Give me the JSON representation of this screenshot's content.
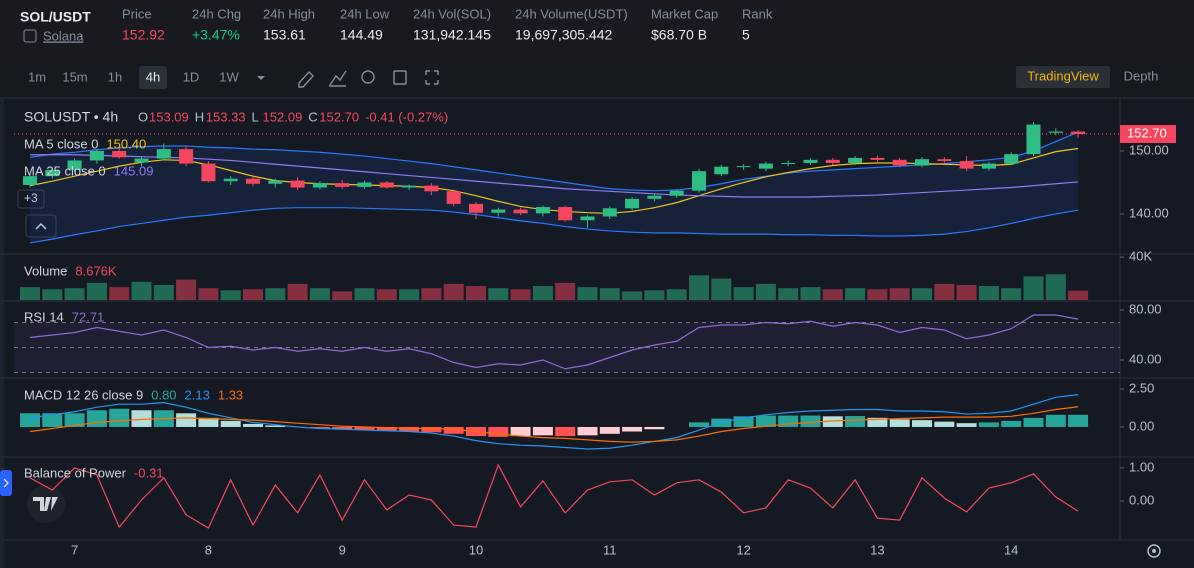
{
  "header": {
    "pair": "SOL/USDT",
    "name": "Solana",
    "stats": [
      {
        "label": "Price",
        "value": "152.92",
        "color": "#f6465d"
      },
      {
        "label": "24h Chg",
        "value": "+3.47%",
        "color": "#0ecb81"
      },
      {
        "label": "24h High",
        "value": "153.61",
        "color": "#eaecef"
      },
      {
        "label": "24h Low",
        "value": "144.49",
        "color": "#eaecef"
      },
      {
        "label": "24h Vol(SOL)",
        "value": "131,942.145",
        "color": "#eaecef"
      },
      {
        "label": "24h Volume(USDT)",
        "value": "19,697,305.442",
        "color": "#eaecef"
      },
      {
        "label": "Market Cap",
        "value": "$68.70 B",
        "color": "#eaecef"
      },
      {
        "label": "Rank",
        "value": "5",
        "color": "#eaecef"
      }
    ]
  },
  "toolbar": {
    "intervals": [
      "1m",
      "15m",
      "1h",
      "4h",
      "1D",
      "1W"
    ],
    "active_interval": 3,
    "views": [
      "TradingView",
      "Depth"
    ],
    "active_view": 0
  },
  "chart_data": {
    "type": "candlestick",
    "symbol": "SOLUSDT • 4h",
    "legend": {
      "O": "153.09",
      "H": "153.33",
      "L": "152.09",
      "C": "152.70",
      "change": "-0.41 (-0.27%)"
    },
    "categories": [
      null,
      null,
      "7",
      null,
      null,
      null,
      null,
      null,
      "8",
      null,
      null,
      null,
      null,
      null,
      "9",
      null,
      null,
      null,
      null,
      null,
      "10",
      null,
      null,
      null,
      null,
      null,
      "11",
      null,
      null,
      null,
      null,
      null,
      "12",
      null,
      null,
      null,
      null,
      null,
      "13",
      null,
      null,
      null,
      null,
      null,
      "14",
      null,
      null,
      null
    ],
    "candles": [
      [
        144.6,
        146.3,
        144.2,
        146
      ],
      [
        146,
        147.2,
        145.6,
        147
      ],
      [
        147,
        148.8,
        146.6,
        148.5
      ],
      [
        148.5,
        150.3,
        148,
        150
      ],
      [
        150,
        150.6,
        148.8,
        149
      ],
      [
        148.2,
        149.2,
        147.6,
        148.8
      ],
      [
        148.8,
        151.2,
        148.5,
        150.3
      ],
      [
        150.3,
        150.8,
        147.6,
        148
      ],
      [
        148,
        148.4,
        145,
        145.2
      ],
      [
        145.2,
        146,
        144.6,
        145.6
      ],
      [
        145.6,
        146.2,
        144.4,
        144.8
      ],
      [
        144.8,
        145.6,
        144.2,
        145.3
      ],
      [
        145.3,
        145.8,
        143.8,
        144.2
      ],
      [
        144.2,
        145.2,
        143.9,
        144.9
      ],
      [
        144.9,
        145.4,
        144,
        144.3
      ],
      [
        144.3,
        145.3,
        144,
        145
      ],
      [
        145,
        145.2,
        144,
        144.2
      ],
      [
        144.2,
        144.7,
        143.8,
        144.5
      ],
      [
        144.5,
        144.9,
        143,
        143.6
      ],
      [
        143.6,
        143.9,
        141.2,
        141.6
      ],
      [
        141.6,
        141.9,
        139.2,
        140.2
      ],
      [
        140.2,
        141,
        139.6,
        140.7
      ],
      [
        140.7,
        141,
        139.8,
        140.1
      ],
      [
        140.1,
        141.3,
        139.6,
        141.1
      ],
      [
        141.1,
        141.3,
        138.8,
        139
      ],
      [
        139,
        139.8,
        137.8,
        139.6
      ],
      [
        139.6,
        141.2,
        139.2,
        140.9
      ],
      [
        140.9,
        142.6,
        140.6,
        142.4
      ],
      [
        142.4,
        143.2,
        142,
        142.9
      ],
      [
        142.9,
        143.9,
        142.6,
        143.7
      ],
      [
        143.7,
        147.2,
        143.4,
        146.8
      ],
      [
        146.3,
        147.8,
        146,
        147.5
      ],
      [
        147.5,
        147.9,
        147,
        147.6
      ],
      [
        147.2,
        148.3,
        146.8,
        148
      ],
      [
        148,
        148.5,
        147.6,
        148.1
      ],
      [
        148.1,
        148.9,
        147.8,
        148.6
      ],
      [
        148.6,
        148.9,
        147.8,
        148.1
      ],
      [
        148.1,
        149.2,
        147.8,
        148.9
      ],
      [
        148.9,
        149.3,
        148.2,
        148.6
      ],
      [
        148.6,
        148.9,
        147.4,
        147.7
      ],
      [
        147.7,
        149,
        147.4,
        148.7
      ],
      [
        148.7,
        149,
        147.9,
        148.4
      ],
      [
        148.4,
        149.2,
        146.8,
        147.2
      ],
      [
        147.2,
        148.3,
        146.9,
        148
      ],
      [
        148,
        149.8,
        147.8,
        149.5
      ],
      [
        149.5,
        154.6,
        149.2,
        154.2
      ],
      [
        152.9,
        153.6,
        152.5,
        153.1
      ],
      [
        153.09,
        153.33,
        152.09,
        152.7
      ]
    ],
    "up_color": "#2ebd85",
    "down_color": "#f6465d",
    "ylim": [
      133.8,
      158.1
    ],
    "yticks": [
      {
        "value": 140,
        "label": "140.00"
      },
      {
        "value": 150,
        "label": "150.00"
      }
    ],
    "last_price_label": "152.70",
    "overlays": [
      {
        "name": "MA 5 close 0",
        "value_label": "150.40",
        "color": "#f0c419",
        "values": [
          144.5,
          145.2,
          146,
          146.8,
          147.6,
          148.2,
          148.6,
          148.5,
          147.8,
          146.9,
          146,
          145.3,
          145,
          144.8,
          144.7,
          144.6,
          144.5,
          144.4,
          144.2,
          143.7,
          142.9,
          142,
          141.2,
          140.7,
          140.4,
          140.2,
          140.1,
          140.4,
          141,
          141.8,
          142.9,
          144,
          145,
          145.9,
          146.6,
          147.2,
          147.7,
          148,
          148.1,
          148.1,
          148,
          147.9,
          147.8,
          147.7,
          147.9,
          148.9,
          149.9,
          150.4
        ]
      },
      {
        "name": "MA 25 close 0",
        "value_label": "145.09",
        "color": "#8e7cf0",
        "values": [
          149.4,
          149.4,
          149.4,
          149.3,
          149.2,
          149.1,
          149,
          148.9,
          148.7,
          148.5,
          148.2,
          147.9,
          147.6,
          147.3,
          147,
          146.7,
          146.4,
          146.1,
          145.8,
          145.5,
          145.2,
          144.9,
          144.6,
          144.3,
          144,
          143.8,
          143.6,
          143.4,
          143.2,
          143,
          142.9,
          142.8,
          142.7,
          142.7,
          142.7,
          142.7,
          142.8,
          142.9,
          143,
          143.2,
          143.4,
          143.6,
          143.8,
          144,
          144.2,
          144.5,
          144.8,
          145.09
        ]
      }
    ],
    "bands": {
      "color": "#2979ff",
      "upper": [
        149,
        149.5,
        149.8,
        150.2,
        150.5,
        150.7,
        150.8,
        150.8,
        150.6,
        150.5,
        150.3,
        150.2,
        150,
        149.8,
        149.5,
        149.2,
        148.8,
        148.4,
        148,
        147.5,
        147,
        146.5,
        146,
        145.5,
        145,
        144.5,
        144,
        143.8,
        143.7,
        143.8,
        144.2,
        144.8,
        145.5,
        146,
        146.5,
        146.8,
        147,
        147.2,
        147.4,
        147.6,
        147.8,
        148,
        148.3,
        148.6,
        149,
        150,
        151.5,
        153
      ],
      "lower": [
        135.4,
        136,
        136.7,
        137.3,
        138,
        138.5,
        139,
        139.5,
        139.8,
        140.2,
        140.6,
        140.9,
        141,
        141,
        141,
        140.9,
        140.8,
        140.7,
        140.6,
        140.3,
        139.9,
        139.4,
        138.9,
        138.5,
        138,
        137.6,
        137.3,
        137.1,
        137,
        137,
        136.9,
        136.8,
        136.8,
        136.8,
        136.7,
        136.7,
        136.6,
        136.6,
        136.5,
        136.5,
        136.6,
        136.8,
        137.2,
        137.8,
        138.5,
        139.3,
        140,
        140.6
      ]
    },
    "hidden_indicators": "+3",
    "panels": [
      {
        "type": "volume",
        "title": "Volume",
        "value_label": "8.676K",
        "ylim": [
          0,
          41000
        ],
        "yticks": [
          {
            "value": 40000,
            "label": "40K"
          }
        ],
        "values": [
          12000,
          10000,
          11000,
          16000,
          12000,
          17000,
          14000,
          19000,
          11000,
          9000,
          10000,
          11000,
          15000,
          11000,
          8000,
          11000,
          10000,
          10000,
          11000,
          15000,
          13000,
          11000,
          10000,
          13000,
          16000,
          12000,
          11000,
          8000,
          9000,
          10000,
          23000,
          20000,
          12000,
          15000,
          11000,
          12000,
          10000,
          11000,
          10000,
          11000,
          11000,
          15000,
          14000,
          13000,
          11000,
          22000,
          24000,
          8676
        ]
      },
      {
        "type": "rsi",
        "title": "RSI 14",
        "value_label": "72.71",
        "color": "#8e6bd8",
        "ylim": [
          27.2,
          86.4
        ],
        "yticks": [
          {
            "value": 40,
            "label": "40.00"
          },
          {
            "value": 80,
            "label": "80.00"
          }
        ],
        "guides": [
          70,
          50,
          30
        ],
        "values": [
          58,
          60,
          62,
          66,
          63,
          60,
          64,
          58,
          50,
          51,
          48,
          50,
          47,
          49,
          47,
          50,
          47,
          49,
          45,
          38,
          34,
          37,
          36,
          40,
          33,
          36,
          42,
          48,
          52,
          55,
          66,
          68,
          68,
          70,
          69,
          71,
          67,
          70,
          68,
          62,
          66,
          64,
          57,
          60,
          65,
          76,
          76,
          72.71
        ]
      },
      {
        "type": "macd",
        "title": "MACD 12 26 close 9",
        "ylim": [
          -1.91,
          3.09
        ],
        "yticks": [
          {
            "value": 0,
            "label": "0.00"
          },
          {
            "value": 2.5,
            "label": "2.50"
          }
        ],
        "hist": {
          "value_label": "0.80",
          "color": "#26a69a",
          "values": [
            0.9,
            0.9,
            0.9,
            1.1,
            1.2,
            1.1,
            1.1,
            0.9,
            0.6,
            0.4,
            0.2,
            0.1,
            0,
            -0.1,
            -0.15,
            -0.2,
            -0.25,
            -0.3,
            -0.35,
            -0.45,
            -0.6,
            -0.65,
            -0.6,
            -0.55,
            -0.6,
            -0.55,
            -0.45,
            -0.3,
            -0.15,
            0,
            0.3,
            0.55,
            0.7,
            0.75,
            0.75,
            0.75,
            0.7,
            0.72,
            0.6,
            0.5,
            0.45,
            0.35,
            0.25,
            0.3,
            0.4,
            0.6,
            0.8,
            0.8
          ]
        },
        "series": [
          {
            "value_label": "2.13",
            "color": "#2196f3",
            "values": [
              0.6,
              0.8,
              1,
              1.3,
              1.5,
              1.5,
              1.6,
              1.3,
              0.9,
              0.6,
              0.3,
              0.15,
              0,
              -0.1,
              -0.15,
              -0.2,
              -0.25,
              -0.3,
              -0.4,
              -0.6,
              -0.9,
              -1.1,
              -1.2,
              -1.25,
              -1.35,
              -1.45,
              -1.4,
              -1.2,
              -0.95,
              -0.7,
              -0.2,
              0.3,
              0.6,
              0.8,
              0.95,
              1.05,
              1.1,
              1.15,
              1.15,
              1.05,
              1.05,
              1,
              0.85,
              0.9,
              1.05,
              1.5,
              1.95,
              2.13
            ]
          },
          {
            "value_label": "1.33",
            "color": "#ff6d00",
            "values": [
              -0.3,
              -0.1,
              0.1,
              0.3,
              0.4,
              0.5,
              0.55,
              0.6,
              0.55,
              0.5,
              0.45,
              0.35,
              0.25,
              0.15,
              0.05,
              0,
              -0.05,
              -0.1,
              -0.1,
              -0.15,
              -0.3,
              -0.45,
              -0.6,
              -0.7,
              -0.75,
              -0.85,
              -0.95,
              -1,
              -0.95,
              -0.85,
              -0.6,
              -0.3,
              -0.1,
              0.05,
              0.2,
              0.3,
              0.4,
              0.45,
              0.5,
              0.55,
              0.6,
              0.65,
              0.65,
              0.65,
              0.7,
              0.9,
              1.15,
              1.33
            ]
          }
        ]
      },
      {
        "type": "line",
        "title": "Balance of Power",
        "value_label": "-0.31",
        "color": "#f6465d",
        "ylim": [
          -1.09,
          1.3
        ],
        "yticks": [
          {
            "value": 0,
            "label": "0.00"
          },
          {
            "value": 1,
            "label": "1.00"
          }
        ],
        "values": [
          0.7,
          0.33,
          1,
          0.79,
          -0.79,
          0.03,
          0.7,
          -0.42,
          -0.82,
          0.64,
          -0.73,
          0.48,
          -0.36,
          0.79,
          -0.58,
          0.64,
          -0.27,
          0.18,
          0.03,
          -0.73,
          -0.79,
          1.09,
          -0.18,
          0.61,
          -0.36,
          0.33,
          0.58,
          0.64,
          0.18,
          0.55,
          0.64,
          0.27,
          -0.36,
          -0.21,
          0.64,
          0.39,
          -0.21,
          0.64,
          -0.52,
          -0.58,
          0.7,
          0.09,
          -0.33,
          0.39,
          0.55,
          0.82,
          0.12,
          -0.31
        ]
      }
    ]
  }
}
